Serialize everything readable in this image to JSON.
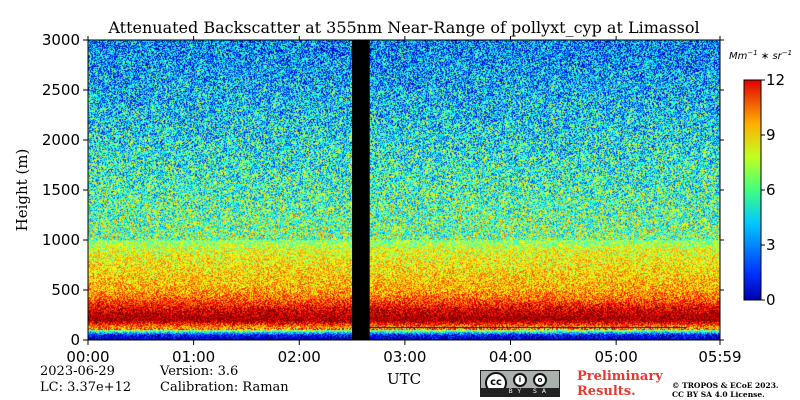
{
  "chart_data": {
    "type": "heatmap",
    "title": "Attenuated Backscatter at 355nm Near-Range of pollyxt_cyp at Limassol",
    "xlabel": "UTC",
    "ylabel": "Height (m)",
    "x_ticks": [
      "00:00",
      "01:00",
      "02:00",
      "03:00",
      "04:00",
      "05:00",
      "05:59"
    ],
    "x_range_minutes": [
      0,
      359
    ],
    "y_ticks": [
      0,
      500,
      1000,
      1500,
      2000,
      2500,
      3000
    ],
    "ylim": [
      0,
      3000
    ],
    "colorbar": {
      "label": "Mm^-1*sr^-1",
      "ticks": [
        0,
        3,
        6,
        9,
        12
      ],
      "range": [
        0,
        12
      ],
      "colormap": "jet"
    },
    "data_gap_minutes": [
      150,
      160
    ],
    "approx_profile": [
      {
        "height": 0,
        "value": 0.5
      },
      {
        "height": 50,
        "value": 1.5
      },
      {
        "height": 110,
        "value": 8
      },
      {
        "height": 200,
        "value": 12
      },
      {
        "height": 300,
        "value": 11
      },
      {
        "height": 400,
        "value": 9.5
      },
      {
        "height": 500,
        "value": 8.5
      },
      {
        "height": 700,
        "value": 7.8
      },
      {
        "height": 900,
        "value": 7.2
      },
      {
        "height": 1000,
        "value": 6
      },
      {
        "height": 1500,
        "value": 5.2
      },
      {
        "height": 2000,
        "value": 4.5
      },
      {
        "height": 2500,
        "value": 3.8
      },
      {
        "height": 3000,
        "value": 3
      }
    ]
  },
  "footer": {
    "date": "2023-06-29",
    "lc": "LC: 3.37e+12",
    "version": "Version: 3.6",
    "calibration": "Calibration: Raman",
    "preliminary_line1": "Preliminary",
    "preliminary_line2": "Results.",
    "copyright_line1": "© TROPOS & ECoE 2023.",
    "copyright_line2": "CC BY SA 4.0 License.",
    "license_badge": "cc-by-sa-badge",
    "license_text": "BY SA"
  }
}
